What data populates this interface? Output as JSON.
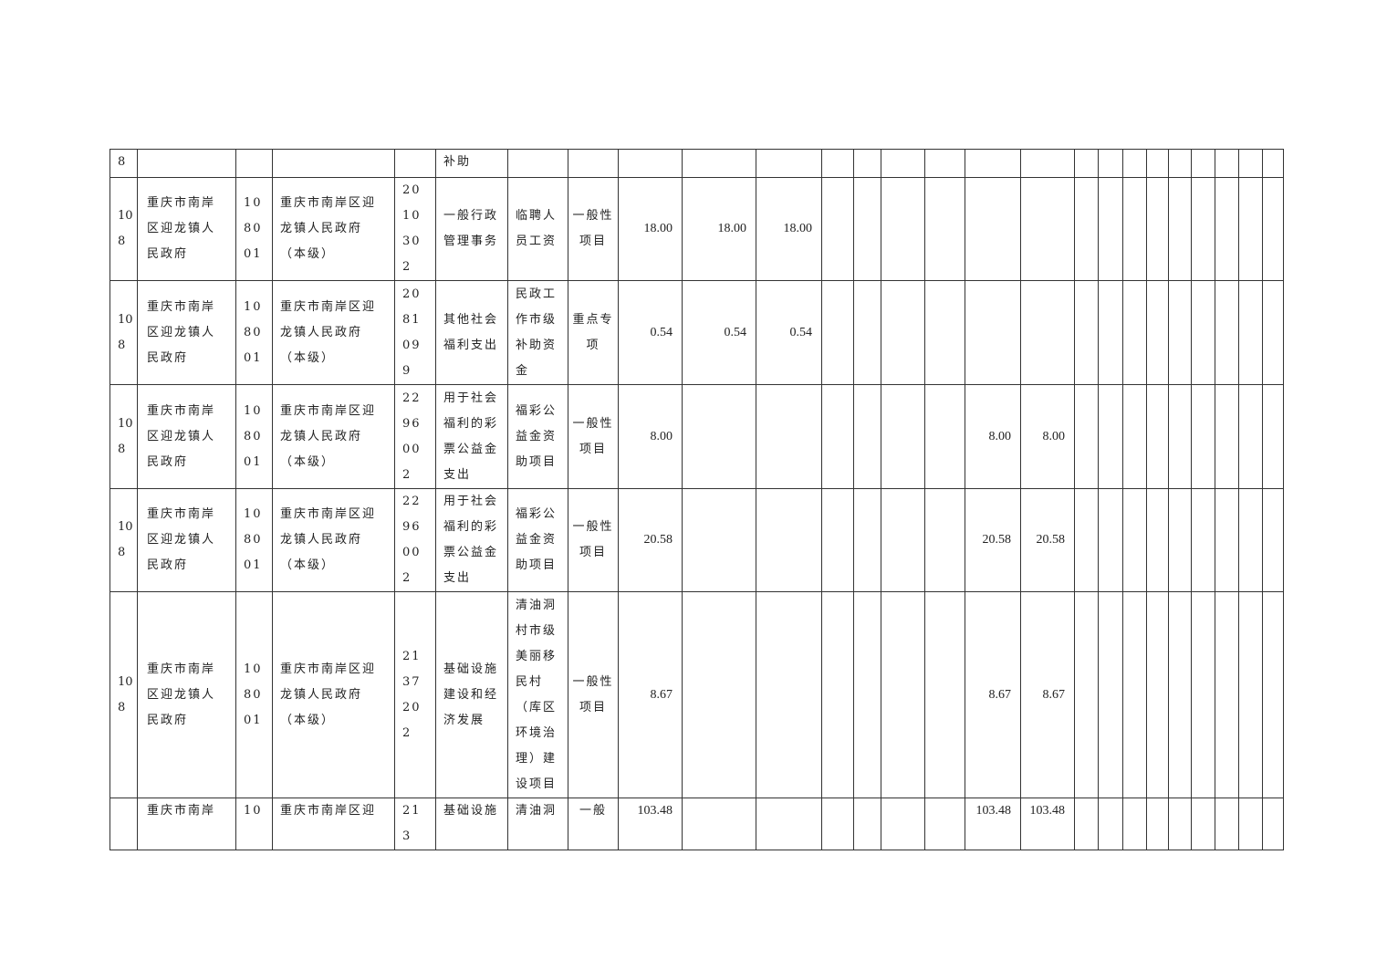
{
  "rows": [
    {
      "cells": [
        "8",
        "",
        "",
        "",
        "",
        "补助",
        "",
        "",
        "",
        "",
        "",
        "",
        "",
        "",
        "",
        "",
        "",
        "",
        "",
        "",
        "",
        "",
        "",
        "",
        "",
        ""
      ]
    },
    {
      "cells": [
        "108",
        "重庆市南岸区迎龙镇人民政府",
        "108001",
        "重庆市南岸区迎龙镇人民政府（本级）",
        "2010302",
        "一般行政管理事务",
        "临聘人员工资",
        "一般性项目",
        "18.00",
        "18.00",
        "18.00",
        "",
        "",
        "",
        "",
        "",
        "",
        "",
        "",
        "",
        "",
        "",
        "",
        "",
        "",
        ""
      ]
    },
    {
      "cells": [
        "108",
        "重庆市南岸区迎龙镇人民政府",
        "108001",
        "重庆市南岸区迎龙镇人民政府（本级）",
        "2081099",
        "其他社会福利支出",
        "民政工作市级补助资金",
        "重点专项",
        "0.54",
        "0.54",
        "0.54",
        "",
        "",
        "",
        "",
        "",
        "",
        "",
        "",
        "",
        "",
        "",
        "",
        "",
        "",
        ""
      ]
    },
    {
      "cells": [
        "108",
        "重庆市南岸区迎龙镇人民政府",
        "108001",
        "重庆市南岸区迎龙镇人民政府（本级）",
        "2296002",
        "用于社会福利的彩票公益金支出",
        "福彩公益金资助项目",
        "一般性项目",
        "8.00",
        "",
        "",
        "",
        "",
        "",
        "",
        "8.00",
        "8.00",
        "",
        "",
        "",
        "",
        "",
        "",
        "",
        "",
        ""
      ]
    },
    {
      "cells": [
        "108",
        "重庆市南岸区迎龙镇人民政府",
        "108001",
        "重庆市南岸区迎龙镇人民政府（本级）",
        "2296002",
        "用于社会福利的彩票公益金支出",
        "福彩公益金资助项目",
        "一般性项目",
        "20.58",
        "",
        "",
        "",
        "",
        "",
        "",
        "20.58",
        "20.58",
        "",
        "",
        "",
        "",
        "",
        "",
        "",
        "",
        ""
      ]
    },
    {
      "cells": [
        "108",
        "重庆市南岸区迎龙镇人民政府",
        "108001",
        "重庆市南岸区迎龙镇人民政府（本级）",
        "2137202",
        "基础设施建设和经济发展",
        "清油洞村市级美丽移民村（库区环境治理）建设项目",
        "一般性项目",
        "8.67",
        "",
        "",
        "",
        "",
        "",
        "",
        "8.67",
        "8.67",
        "",
        "",
        "",
        "",
        "",
        "",
        "",
        "",
        ""
      ]
    },
    {
      "cells": [
        "",
        "重庆市南岸",
        "10",
        "重庆市南岸区迎",
        "213",
        "基础设施",
        "清油洞",
        "一般",
        "103.48",
        "",
        "",
        "",
        "",
        "",
        "",
        "103.48",
        "103.48",
        "",
        "",
        "",
        "",
        "",
        "",
        "",
        "",
        ""
      ]
    }
  ]
}
